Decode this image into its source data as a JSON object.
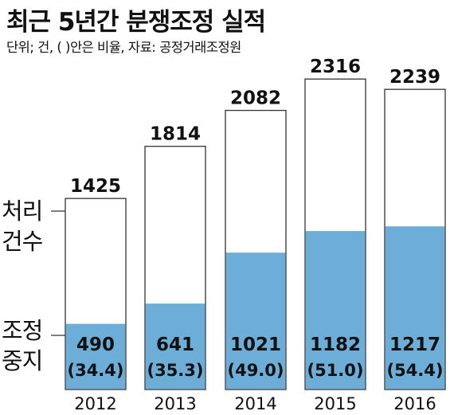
{
  "header": {
    "title": "최근 5년간 분쟁조정 실적",
    "subtitle": "단위; 건, (    )안은 비율, 자료: 공정거래조정원"
  },
  "legend": {
    "total_line1": "처리",
    "total_line2": "건수",
    "stopped_line1": "조정",
    "stopped_line2": "중지"
  },
  "chart_data": {
    "type": "bar",
    "categories": [
      "2012",
      "2013",
      "2014",
      "2015",
      "2016"
    ],
    "series": [
      {
        "name": "처리건수",
        "values": [
          1425,
          1814,
          2082,
          2316,
          2239
        ]
      },
      {
        "name": "조정중지",
        "values": [
          490,
          641,
          1021,
          1182,
          1217
        ]
      }
    ],
    "ratios": [
      "(34.4)",
      "(35.3)",
      "(49.0)",
      "(51.0)",
      "(54.4)"
    ],
    "title": "최근 5년간 분쟁조정 실적",
    "units": "건",
    "colors": {
      "total": "#ffffff",
      "stopped": "#6daed8",
      "outline": "#333333"
    }
  }
}
